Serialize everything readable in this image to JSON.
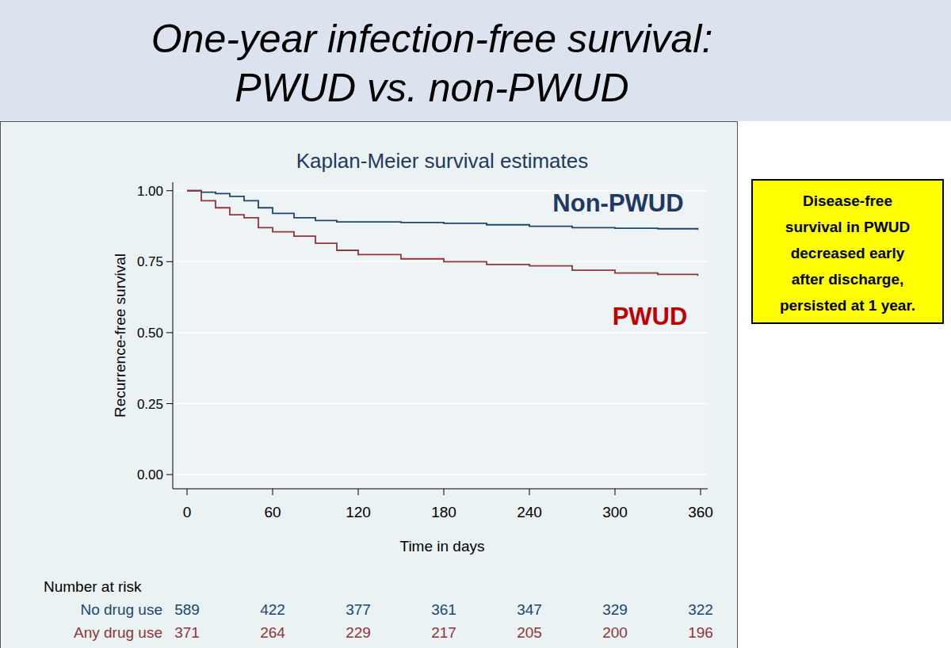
{
  "slide": {
    "title": [
      "One-year infection-free survival:",
      "PWUD vs. non-PWUD"
    ],
    "callout": [
      "Disease-free",
      "survival in PWUD",
      "decreased early",
      "after discharge,",
      "persisted at 1 year."
    ]
  },
  "chart_data": {
    "type": "step",
    "title": "Kaplan-Meier survival estimates",
    "x_label": "Time in days",
    "y_label": "Recurrence-free survival",
    "x": [
      0,
      10,
      20,
      30,
      40,
      50,
      60,
      75,
      90,
      105,
      120,
      150,
      180,
      210,
      240,
      270,
      300,
      330,
      358
    ],
    "series": [
      {
        "name": "Non-PWUD",
        "color": "#1a476f",
        "line_style": "solid",
        "values": [
          1.0,
          0.995,
          0.99,
          0.98,
          0.965,
          0.94,
          0.92,
          0.905,
          0.895,
          0.89,
          0.89,
          0.888,
          0.885,
          0.88,
          0.875,
          0.87,
          0.868,
          0.866,
          0.862
        ]
      },
      {
        "name": "PWUD",
        "color": "#90353b",
        "line_style": "solid",
        "values": [
          1.0,
          0.965,
          0.94,
          0.915,
          0.905,
          0.87,
          0.855,
          0.84,
          0.815,
          0.79,
          0.775,
          0.76,
          0.75,
          0.74,
          0.735,
          0.72,
          0.71,
          0.705,
          0.7
        ]
      }
    ],
    "xlim": [
      -10,
      365
    ],
    "xticks": [
      0,
      60,
      120,
      180,
      240,
      300,
      360
    ],
    "ylim": [
      -0.05,
      1.03
    ],
    "yticks": [
      {
        "value": 0,
        "label": "0.00"
      },
      {
        "value": 0.25,
        "label": "0.25"
      },
      {
        "value": 0.5,
        "label": "0.50"
      },
      {
        "value": 0.75,
        "label": "0.75"
      },
      {
        "value": 1,
        "label": "1.00"
      }
    ],
    "grid": true,
    "risk_table": {
      "title": "Number at risk",
      "rows": [
        {
          "name": "No drug use",
          "color": "#1a476f",
          "values": [
            589,
            422,
            377,
            361,
            347,
            329,
            322
          ]
        },
        {
          "name": "Any drug use",
          "color": "#90353b",
          "values": [
            371,
            264,
            229,
            217,
            205,
            200,
            196
          ]
        }
      ]
    }
  }
}
